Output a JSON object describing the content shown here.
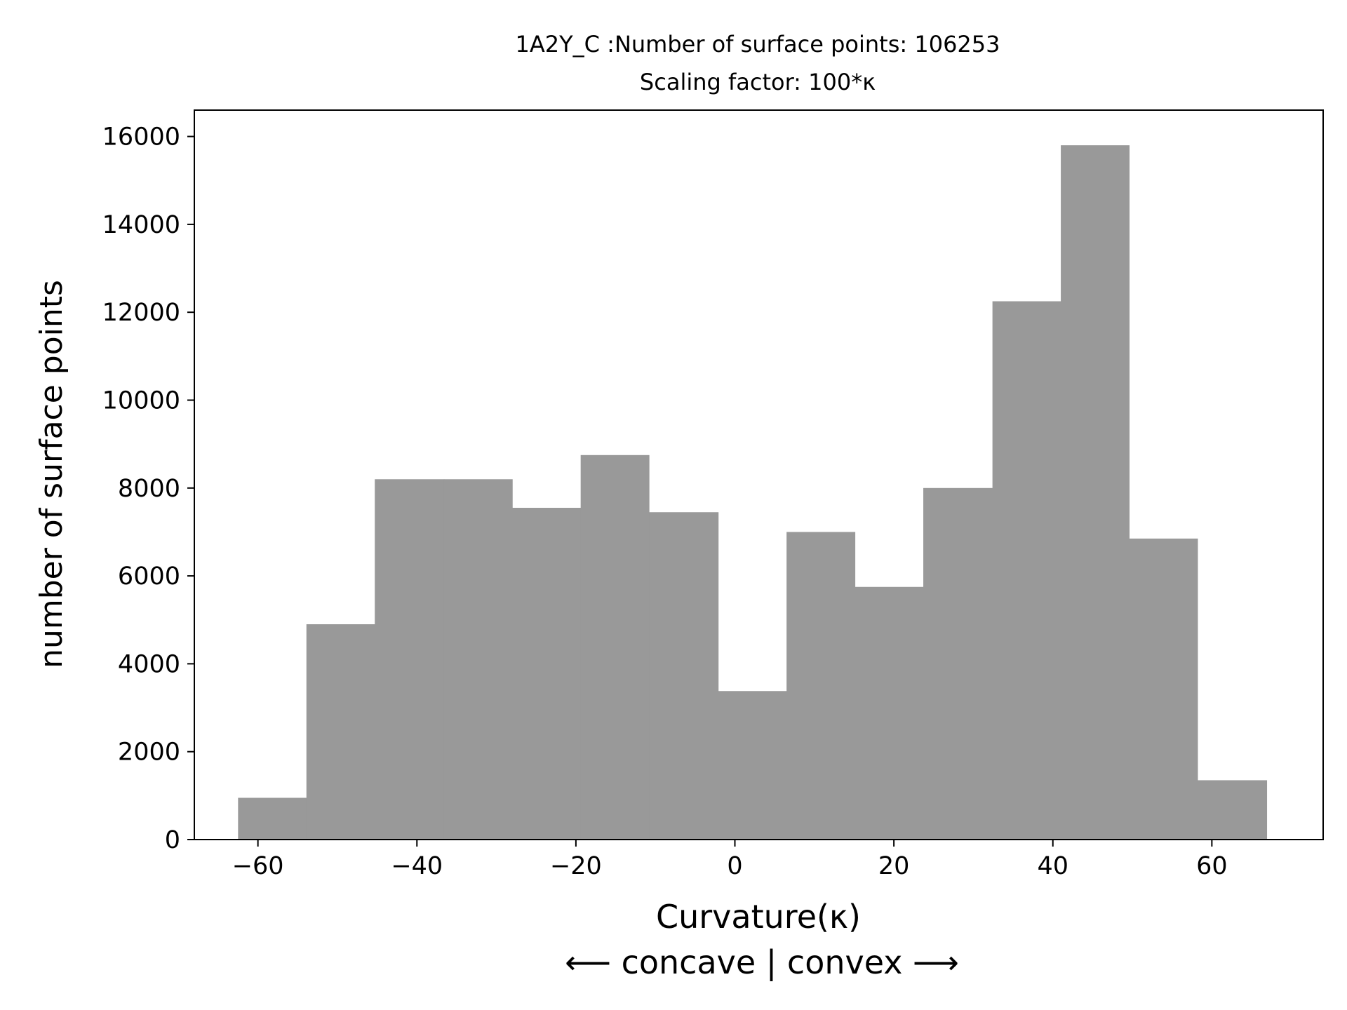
{
  "chart_data": {
    "type": "bar",
    "title": "1A2Y_C :Number of surface points: 106253",
    "subtitle": "Scaling factor: 100*κ",
    "xlabel": "Curvature(κ)",
    "xlabel_sub": "⟵  concave | convex  ⟶",
    "ylabel": "number of surface points",
    "xlim": [
      -68,
      74
    ],
    "ylim": [
      0,
      16600
    ],
    "x_ticks": [
      -60,
      -40,
      -20,
      0,
      20,
      40,
      60
    ],
    "x_tick_labels": [
      "−60",
      "−40",
      "−20",
      "0",
      "20",
      "40",
      "60"
    ],
    "y_ticks": [
      0,
      2000,
      4000,
      6000,
      8000,
      10000,
      12000,
      14000,
      16000
    ],
    "y_tick_labels": [
      "0",
      "2000",
      "4000",
      "6000",
      "8000",
      "10000",
      "12000",
      "14000",
      "16000"
    ],
    "bin_edges": [
      -62.5,
      -53.9,
      -45.3,
      -36.6,
      -28.0,
      -19.4,
      -10.8,
      -2.1,
      6.5,
      15.1,
      23.7,
      32.4,
      41.0,
      49.6,
      58.2,
      66.9
    ],
    "values": [
      950,
      4900,
      8200,
      8200,
      7550,
      8750,
      7450,
      3380,
      7000,
      5750,
      8000,
      12250,
      15800,
      6850,
      1350
    ],
    "bar_color": "#999999",
    "grid": false,
    "legend": "none"
  }
}
